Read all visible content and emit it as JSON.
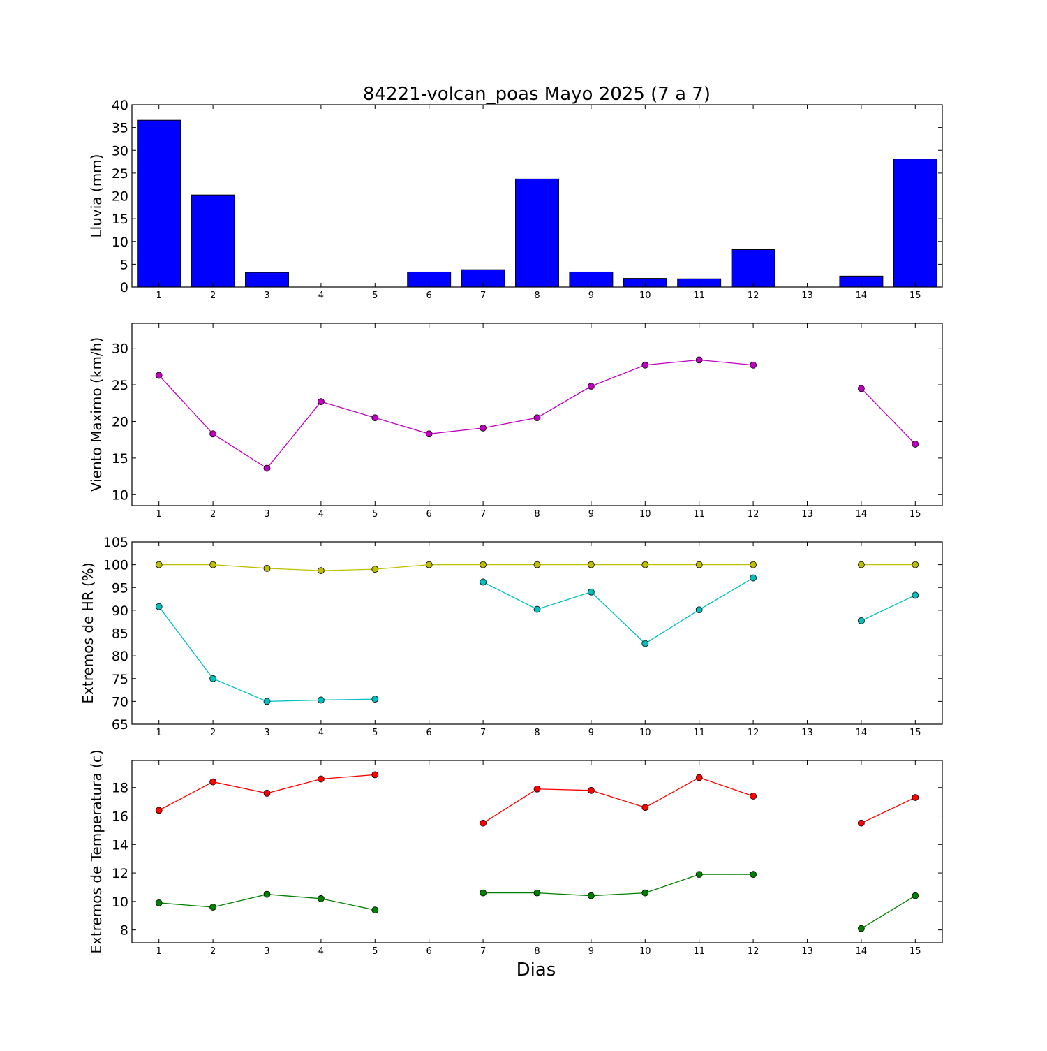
{
  "figure": {
    "title": "84221-volcan_poas Mayo 2025  (7 a 7)",
    "xlabel": "Dias"
  },
  "chart_data": [
    {
      "type": "bar",
      "ylabel": "Lluvia (mm)",
      "ylim": [
        0,
        40
      ],
      "yticks": [
        0,
        5,
        10,
        15,
        20,
        25,
        30,
        35,
        40
      ],
      "xlim": [
        0.5,
        15.5
      ],
      "xticks": [
        1,
        2,
        3,
        4,
        5,
        6,
        7,
        8,
        9,
        10,
        11,
        12,
        13,
        14,
        15
      ],
      "categories": [
        1,
        2,
        3,
        4,
        5,
        6,
        7,
        8,
        9,
        10,
        11,
        12,
        13,
        14,
        15
      ],
      "series": [
        {
          "color": "#0000ff",
          "values": [
            36.6,
            20.2,
            3.2,
            0,
            0,
            3.3,
            3.8,
            23.7,
            3.3,
            1.9,
            1.8,
            8.2,
            null,
            2.4,
            28.1
          ]
        }
      ]
    },
    {
      "type": "line",
      "ylabel": "Viento Maximo (km/h)",
      "ylim": [
        8.5,
        33.4
      ],
      "yticks": [
        10,
        15,
        20,
        25,
        30
      ],
      "xlim": [
        0.5,
        15.5
      ],
      "xticks": [
        1,
        2,
        3,
        4,
        5,
        6,
        7,
        8,
        9,
        10,
        11,
        12,
        13,
        14,
        15
      ],
      "x": [
        1,
        2,
        3,
        4,
        5,
        6,
        7,
        8,
        9,
        10,
        11,
        12,
        13,
        14,
        15
      ],
      "series": [
        {
          "color": "#bf00bf",
          "values": [
            26.3,
            18.3,
            13.6,
            22.7,
            20.5,
            18.3,
            19.1,
            20.5,
            24.8,
            27.7,
            28.4,
            27.7,
            null,
            24.5,
            16.9
          ]
        }
      ]
    },
    {
      "type": "line",
      "ylabel": "Extremos de HR (%)",
      "ylim": [
        65,
        105
      ],
      "yticks": [
        65,
        70,
        75,
        80,
        85,
        90,
        95,
        100,
        105
      ],
      "xlim": [
        0.5,
        15.5
      ],
      "xticks": [
        1,
        2,
        3,
        4,
        5,
        6,
        7,
        8,
        9,
        10,
        11,
        12,
        13,
        14,
        15
      ],
      "x": [
        1,
        2,
        3,
        4,
        5,
        6,
        7,
        8,
        9,
        10,
        11,
        12,
        13,
        14,
        15
      ],
      "series": [
        {
          "color": "#bfbf00",
          "values": [
            100,
            100,
            99.2,
            98.7,
            99.0,
            100,
            100,
            100,
            100,
            100,
            100,
            100,
            null,
            100,
            100
          ]
        },
        {
          "color": "#00bfbf",
          "values": [
            90.8,
            75.0,
            70.0,
            70.3,
            70.5,
            null,
            96.2,
            90.2,
            94.0,
            82.7,
            90.1,
            97.1,
            null,
            87.7,
            93.3
          ]
        }
      ]
    },
    {
      "type": "line",
      "ylabel": "Extremos de Temperatura (c)",
      "ylim": [
        7.1,
        19.9
      ],
      "yticks": [
        8,
        10,
        12,
        14,
        16,
        18
      ],
      "xlim": [
        0.5,
        15.5
      ],
      "xticks": [
        1,
        2,
        3,
        4,
        5,
        6,
        7,
        8,
        9,
        10,
        11,
        12,
        13,
        14,
        15
      ],
      "x": [
        1,
        2,
        3,
        4,
        5,
        6,
        7,
        8,
        9,
        10,
        11,
        12,
        13,
        14,
        15
      ],
      "series": [
        {
          "color": "#ff0000",
          "values": [
            16.4,
            18.4,
            17.6,
            18.6,
            18.9,
            null,
            15.5,
            17.9,
            17.8,
            16.6,
            18.7,
            17.4,
            null,
            15.5,
            17.3
          ]
        },
        {
          "color": "#008000",
          "values": [
            9.9,
            9.6,
            10.5,
            10.2,
            9.4,
            null,
            10.6,
            10.6,
            10.4,
            10.6,
            11.9,
            11.9,
            null,
            8.1,
            10.4
          ]
        }
      ]
    }
  ]
}
